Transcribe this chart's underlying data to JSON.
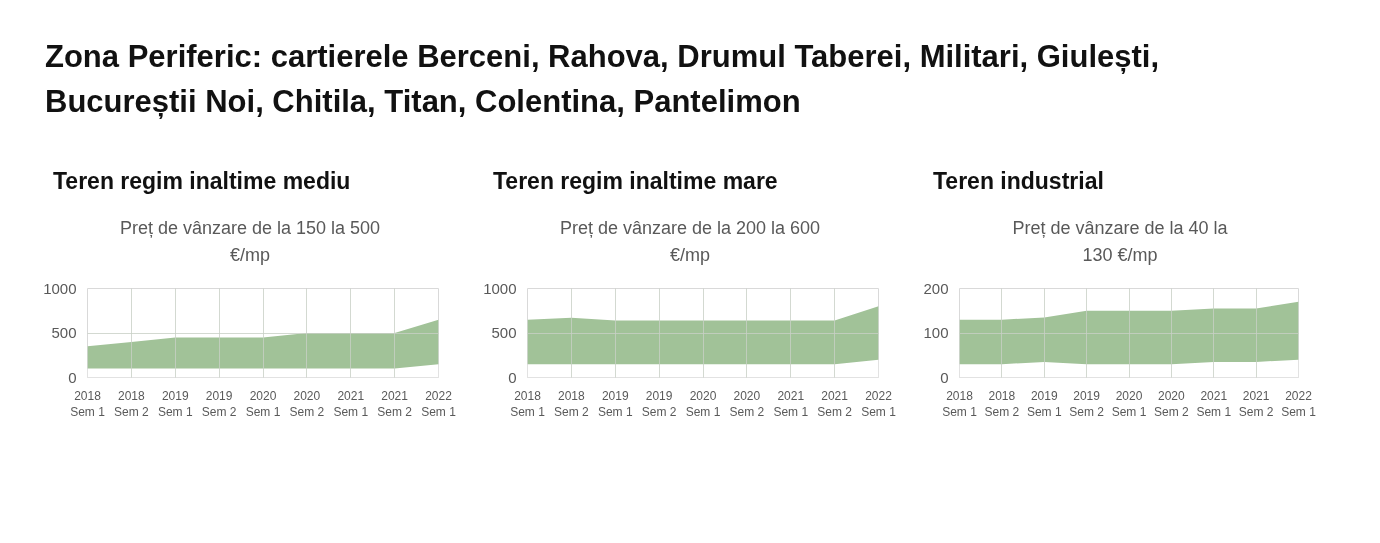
{
  "chart_data": [
    {
      "type": "area",
      "title": "Teren regim inaltime mediu",
      "subtitle": "Preț de vânzare de la 150 la 500 €/mp",
      "annotations": [
        "Zona Periferic: cartierele Berceni, Rahova, Drumul Taberei, Militari, Giulești, Bucureștii Noi, Chitila, Titan, Colentina, Pantelimon"
      ],
      "categories": [
        "2018 Sem 1",
        "2018 Sem 2",
        "2019 Sem 1",
        "2019 Sem 2",
        "2020 Sem 1",
        "2020 Sem 2",
        "2021 Sem 1",
        "2021 Sem 2",
        "2022 Sem 1"
      ],
      "stacked": true,
      "series": [
        {
          "color": "#ffffff",
          "values": [
            100,
            100,
            100,
            100,
            100,
            100,
            100,
            100,
            150
          ]
        },
        {
          "color": "#a1c298",
          "values": [
            250,
            300,
            350,
            350,
            350,
            400,
            400,
            400,
            500
          ]
        }
      ],
      "ylim": [
        0,
        1000
      ],
      "yticks": [
        0,
        500,
        1000
      ],
      "grid": true
    },
    {
      "type": "area",
      "title": "Teren regim inaltime mare",
      "subtitle": "Preț de vânzare de la 200 la 600 €/mp",
      "categories": [
        "2018 Sem 1",
        "2018 Sem 2",
        "2019 Sem 1",
        "2019 Sem 2",
        "2020 Sem 1",
        "2020 Sem 2",
        "2021 Sem 1",
        "2021 Sem 2",
        "2022 Sem 1"
      ],
      "stacked": true,
      "series": [
        {
          "color": "#ffffff",
          "values": [
            150,
            150,
            150,
            150,
            150,
            150,
            150,
            150,
            200
          ]
        },
        {
          "color": "#a1c298",
          "values": [
            500,
            520,
            490,
            490,
            490,
            490,
            490,
            490,
            600
          ]
        }
      ],
      "ylim": [
        0,
        1000
      ],
      "yticks": [
        0,
        500,
        1000
      ],
      "grid": true
    },
    {
      "type": "area",
      "title": "Teren industrial",
      "subtitle": "Preț de vânzare de la 40 la 130 €/mp",
      "categories": [
        "2018 Sem 1",
        "2018 Sem 2",
        "2019 Sem 1",
        "2019 Sem 2",
        "2020 Sem 1",
        "2020 Sem 2",
        "2021 Sem 1",
        "2021 Sem 2",
        "2022 Sem 1"
      ],
      "stacked": true,
      "series": [
        {
          "color": "#ffffff",
          "values": [
            30,
            30,
            35,
            30,
            30,
            30,
            35,
            35,
            40
          ]
        },
        {
          "color": "#a1c298",
          "values": [
            100,
            100,
            100,
            120,
            120,
            120,
            120,
            120,
            130
          ]
        }
      ],
      "ylim": [
        0,
        200
      ],
      "yticks": [
        0,
        100,
        200
      ],
      "grid": true
    }
  ]
}
